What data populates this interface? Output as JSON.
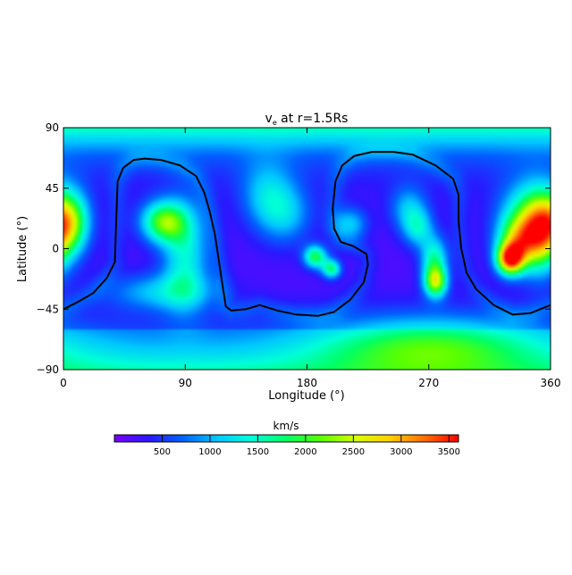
{
  "chart_data": {
    "type": "heatmap",
    "title_main": "v",
    "title_sub": "e",
    "title_rest": " at r=1.5Rs",
    "xlabel": "Longitude (°)",
    "ylabel": "Latitude (°)",
    "xlim": [
      0,
      360
    ],
    "ylim": [
      -90,
      90
    ],
    "x_ticks": [
      {
        "value": 0,
        "label": "0"
      },
      {
        "value": 90,
        "label": "90"
      },
      {
        "value": 180,
        "label": "180"
      },
      {
        "value": 270,
        "label": "270"
      },
      {
        "value": 360,
        "label": "360"
      }
    ],
    "y_ticks": [
      {
        "value": 90,
        "label": "90"
      },
      {
        "value": 45,
        "label": "45"
      },
      {
        "value": 0,
        "label": "0"
      },
      {
        "value": -45,
        "label": "−45"
      },
      {
        "value": -90,
        "label": "−90"
      }
    ],
    "colorbar": {
      "label": "km/s",
      "range": [
        0,
        3600
      ],
      "ticks": [
        {
          "value": 500,
          "label": "500"
        },
        {
          "value": 1000,
          "label": "1000"
        },
        {
          "value": 1500,
          "label": "1500"
        },
        {
          "value": 2000,
          "label": "2000"
        },
        {
          "value": 2500,
          "label": "2500"
        },
        {
          "value": 3000,
          "label": "3000"
        },
        {
          "value": 3500,
          "label": "3500"
        }
      ],
      "colors": [
        "#7a00ff",
        "#2a18ff",
        "#0064ff",
        "#00c8ff",
        "#00ffd8",
        "#00ff64",
        "#5aff00",
        "#d8ff00",
        "#ffd000",
        "#ff7000",
        "#ff0000"
      ]
    },
    "neutral_line": [
      [
        0,
        -45
      ],
      [
        10,
        -40
      ],
      [
        22,
        -33
      ],
      [
        32,
        -22
      ],
      [
        38,
        -10
      ],
      [
        39,
        20
      ],
      [
        40,
        50
      ],
      [
        44,
        60
      ],
      [
        52,
        66
      ],
      [
        60,
        67
      ],
      [
        72,
        66
      ],
      [
        86,
        62
      ],
      [
        98,
        54
      ],
      [
        104,
        42
      ],
      [
        108,
        28
      ],
      [
        112,
        10
      ],
      [
        115,
        -10
      ],
      [
        118,
        -30
      ],
      [
        120,
        -43
      ],
      [
        124,
        -46
      ],
      [
        135,
        -45
      ],
      [
        145,
        -42
      ],
      [
        158,
        -46
      ],
      [
        172,
        -49
      ],
      [
        188,
        -50
      ],
      [
        200,
        -47
      ],
      [
        212,
        -38
      ],
      [
        222,
        -25
      ],
      [
        225,
        -12
      ],
      [
        224,
        -4
      ],
      [
        214,
        2
      ],
      [
        205,
        5
      ],
      [
        200,
        15
      ],
      [
        199,
        30
      ],
      [
        201,
        50
      ],
      [
        206,
        62
      ],
      [
        215,
        69
      ],
      [
        228,
        72
      ],
      [
        244,
        72
      ],
      [
        258,
        70
      ],
      [
        275,
        62
      ],
      [
        288,
        52
      ],
      [
        292,
        40
      ],
      [
        292,
        20
      ],
      [
        294,
        0
      ],
      [
        298,
        -18
      ],
      [
        305,
        -30
      ],
      [
        318,
        -42
      ],
      [
        332,
        -49
      ],
      [
        345,
        -48
      ],
      [
        360,
        -42
      ]
    ],
    "features": [
      {
        "lon": 6,
        "lat": 20,
        "value": 1700,
        "sx": 10,
        "sy": 16
      },
      {
        "lon": 74,
        "lat": 20,
        "value": 2100,
        "sx": 12,
        "sy": 11
      },
      {
        "lon": 90,
        "lat": -5,
        "value": 1400,
        "sx": 12,
        "sy": 28
      },
      {
        "lon": 72,
        "lat": -32,
        "value": 1100,
        "sx": 28,
        "sy": 10
      },
      {
        "lon": 150,
        "lat": 40,
        "value": 1050,
        "sx": 14,
        "sy": 18
      },
      {
        "lon": 165,
        "lat": 25,
        "value": 1000,
        "sx": 14,
        "sy": 16
      },
      {
        "lon": 186,
        "lat": -6,
        "value": 1900,
        "sx": 6,
        "sy": 6
      },
      {
        "lon": 198,
        "lat": -15,
        "value": 1750,
        "sx": 5,
        "sy": 5
      },
      {
        "lon": 212,
        "lat": 18,
        "value": 1150,
        "sx": 9,
        "sy": 9
      },
      {
        "lon": 255,
        "lat": 30,
        "value": 1050,
        "sx": 10,
        "sy": 12
      },
      {
        "lon": 262,
        "lat": 15,
        "value": 1200,
        "sx": 8,
        "sy": 10
      },
      {
        "lon": 275,
        "lat": -25,
        "value": 2200,
        "sx": 6,
        "sy": 8
      },
      {
        "lon": 274,
        "lat": -8,
        "value": 1600,
        "sx": 7,
        "sy": 12
      },
      {
        "lon": 270,
        "lat": -72,
        "value": 1400,
        "sx": 60,
        "sy": 16
      },
      {
        "lon": 330,
        "lat": -8,
        "value": 3000,
        "sx": 7,
        "sy": 8
      },
      {
        "lon": 345,
        "lat": 20,
        "value": 1900,
        "sx": 16,
        "sy": 20
      },
      {
        "lon": 352,
        "lat": 10,
        "value": 1800,
        "sx": 10,
        "sy": 20
      },
      {
        "lon": 335,
        "lat": 5,
        "value": 1600,
        "sx": 10,
        "sy": 12
      }
    ]
  }
}
